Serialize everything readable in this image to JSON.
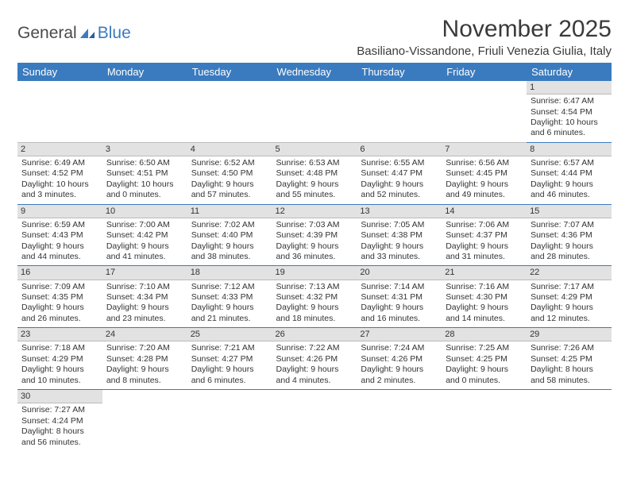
{
  "logo": {
    "part1": "General",
    "part2": "Blue"
  },
  "header": {
    "title": "November 2025",
    "location": "Basiliano-Vissandone, Friuli Venezia Giulia, Italy"
  },
  "colors": {
    "header_bg": "#3a7bbf",
    "header_fg": "#ffffff",
    "daynum_bg": "#e2e2e2",
    "rule": "#3a7bbf"
  },
  "weekdays": [
    "Sunday",
    "Monday",
    "Tuesday",
    "Wednesday",
    "Thursday",
    "Friday",
    "Saturday"
  ],
  "weeks": [
    [
      null,
      null,
      null,
      null,
      null,
      null,
      {
        "n": "1",
        "sr": "Sunrise: 6:47 AM",
        "ss": "Sunset: 4:54 PM",
        "d1": "Daylight: 10 hours",
        "d2": "and 6 minutes."
      }
    ],
    [
      {
        "n": "2",
        "sr": "Sunrise: 6:49 AM",
        "ss": "Sunset: 4:52 PM",
        "d1": "Daylight: 10 hours",
        "d2": "and 3 minutes."
      },
      {
        "n": "3",
        "sr": "Sunrise: 6:50 AM",
        "ss": "Sunset: 4:51 PM",
        "d1": "Daylight: 10 hours",
        "d2": "and 0 minutes."
      },
      {
        "n": "4",
        "sr": "Sunrise: 6:52 AM",
        "ss": "Sunset: 4:50 PM",
        "d1": "Daylight: 9 hours",
        "d2": "and 57 minutes."
      },
      {
        "n": "5",
        "sr": "Sunrise: 6:53 AM",
        "ss": "Sunset: 4:48 PM",
        "d1": "Daylight: 9 hours",
        "d2": "and 55 minutes."
      },
      {
        "n": "6",
        "sr": "Sunrise: 6:55 AM",
        "ss": "Sunset: 4:47 PM",
        "d1": "Daylight: 9 hours",
        "d2": "and 52 minutes."
      },
      {
        "n": "7",
        "sr": "Sunrise: 6:56 AM",
        "ss": "Sunset: 4:45 PM",
        "d1": "Daylight: 9 hours",
        "d2": "and 49 minutes."
      },
      {
        "n": "8",
        "sr": "Sunrise: 6:57 AM",
        "ss": "Sunset: 4:44 PM",
        "d1": "Daylight: 9 hours",
        "d2": "and 46 minutes."
      }
    ],
    [
      {
        "n": "9",
        "sr": "Sunrise: 6:59 AM",
        "ss": "Sunset: 4:43 PM",
        "d1": "Daylight: 9 hours",
        "d2": "and 44 minutes."
      },
      {
        "n": "10",
        "sr": "Sunrise: 7:00 AM",
        "ss": "Sunset: 4:42 PM",
        "d1": "Daylight: 9 hours",
        "d2": "and 41 minutes."
      },
      {
        "n": "11",
        "sr": "Sunrise: 7:02 AM",
        "ss": "Sunset: 4:40 PM",
        "d1": "Daylight: 9 hours",
        "d2": "and 38 minutes."
      },
      {
        "n": "12",
        "sr": "Sunrise: 7:03 AM",
        "ss": "Sunset: 4:39 PM",
        "d1": "Daylight: 9 hours",
        "d2": "and 36 minutes."
      },
      {
        "n": "13",
        "sr": "Sunrise: 7:05 AM",
        "ss": "Sunset: 4:38 PM",
        "d1": "Daylight: 9 hours",
        "d2": "and 33 minutes."
      },
      {
        "n": "14",
        "sr": "Sunrise: 7:06 AM",
        "ss": "Sunset: 4:37 PM",
        "d1": "Daylight: 9 hours",
        "d2": "and 31 minutes."
      },
      {
        "n": "15",
        "sr": "Sunrise: 7:07 AM",
        "ss": "Sunset: 4:36 PM",
        "d1": "Daylight: 9 hours",
        "d2": "and 28 minutes."
      }
    ],
    [
      {
        "n": "16",
        "sr": "Sunrise: 7:09 AM",
        "ss": "Sunset: 4:35 PM",
        "d1": "Daylight: 9 hours",
        "d2": "and 26 minutes."
      },
      {
        "n": "17",
        "sr": "Sunrise: 7:10 AM",
        "ss": "Sunset: 4:34 PM",
        "d1": "Daylight: 9 hours",
        "d2": "and 23 minutes."
      },
      {
        "n": "18",
        "sr": "Sunrise: 7:12 AM",
        "ss": "Sunset: 4:33 PM",
        "d1": "Daylight: 9 hours",
        "d2": "and 21 minutes."
      },
      {
        "n": "19",
        "sr": "Sunrise: 7:13 AM",
        "ss": "Sunset: 4:32 PM",
        "d1": "Daylight: 9 hours",
        "d2": "and 18 minutes."
      },
      {
        "n": "20",
        "sr": "Sunrise: 7:14 AM",
        "ss": "Sunset: 4:31 PM",
        "d1": "Daylight: 9 hours",
        "d2": "and 16 minutes."
      },
      {
        "n": "21",
        "sr": "Sunrise: 7:16 AM",
        "ss": "Sunset: 4:30 PM",
        "d1": "Daylight: 9 hours",
        "d2": "and 14 minutes."
      },
      {
        "n": "22",
        "sr": "Sunrise: 7:17 AM",
        "ss": "Sunset: 4:29 PM",
        "d1": "Daylight: 9 hours",
        "d2": "and 12 minutes."
      }
    ],
    [
      {
        "n": "23",
        "sr": "Sunrise: 7:18 AM",
        "ss": "Sunset: 4:29 PM",
        "d1": "Daylight: 9 hours",
        "d2": "and 10 minutes."
      },
      {
        "n": "24",
        "sr": "Sunrise: 7:20 AM",
        "ss": "Sunset: 4:28 PM",
        "d1": "Daylight: 9 hours",
        "d2": "and 8 minutes."
      },
      {
        "n": "25",
        "sr": "Sunrise: 7:21 AM",
        "ss": "Sunset: 4:27 PM",
        "d1": "Daylight: 9 hours",
        "d2": "and 6 minutes."
      },
      {
        "n": "26",
        "sr": "Sunrise: 7:22 AM",
        "ss": "Sunset: 4:26 PM",
        "d1": "Daylight: 9 hours",
        "d2": "and 4 minutes."
      },
      {
        "n": "27",
        "sr": "Sunrise: 7:24 AM",
        "ss": "Sunset: 4:26 PM",
        "d1": "Daylight: 9 hours",
        "d2": "and 2 minutes."
      },
      {
        "n": "28",
        "sr": "Sunrise: 7:25 AM",
        "ss": "Sunset: 4:25 PM",
        "d1": "Daylight: 9 hours",
        "d2": "and 0 minutes."
      },
      {
        "n": "29",
        "sr": "Sunrise: 7:26 AM",
        "ss": "Sunset: 4:25 PM",
        "d1": "Daylight: 8 hours",
        "d2": "and 58 minutes."
      }
    ],
    [
      {
        "n": "30",
        "sr": "Sunrise: 7:27 AM",
        "ss": "Sunset: 4:24 PM",
        "d1": "Daylight: 8 hours",
        "d2": "and 56 minutes."
      },
      null,
      null,
      null,
      null,
      null,
      null
    ]
  ]
}
